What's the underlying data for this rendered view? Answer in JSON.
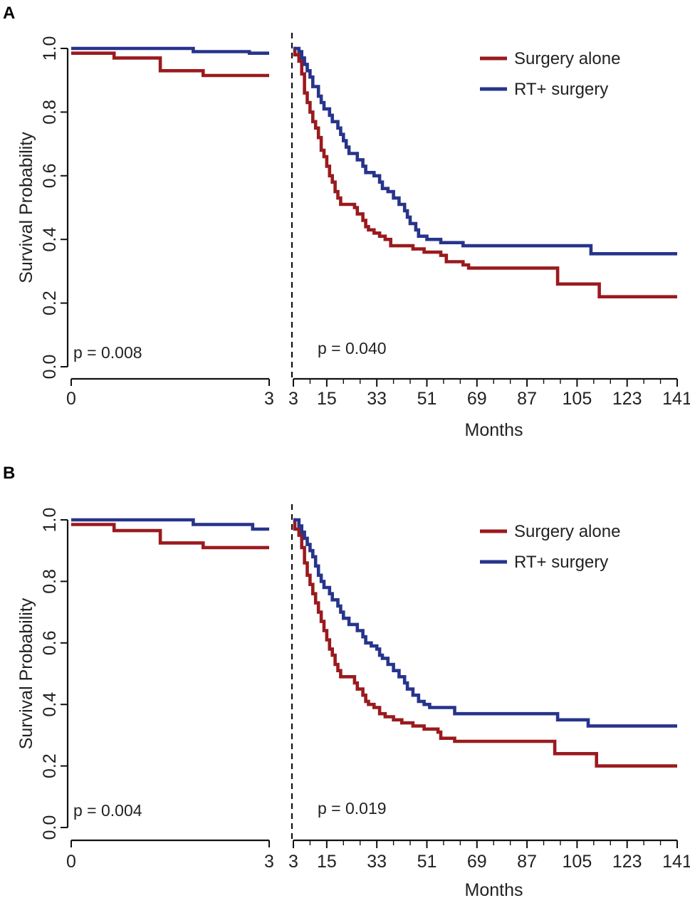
{
  "chart_data": [
    {
      "type": "line",
      "panel": "A",
      "ylabel": "Survival Probability",
      "xlabel": "Months",
      "y_ticks": [
        "0.0",
        "0.2",
        "0.4",
        "0.6",
        "0.8",
        "1.0"
      ],
      "ylim": [
        0,
        1
      ],
      "left_segment": {
        "xlim": [
          0,
          3
        ],
        "x_ticks": [
          "0",
          "3"
        ],
        "p_value": "p = 0.008"
      },
      "right_segment": {
        "xlim": [
          3,
          141
        ],
        "x_ticks": [
          "3",
          "15",
          "33",
          "51",
          "69",
          "87",
          "105",
          "123",
          "141"
        ],
        "p_value": "p = 0.040"
      },
      "legend": [
        "Surgery alone",
        "RT+ surgery"
      ],
      "colors": {
        "surgery_alone": "#9a1a1e",
        "rt_surgery": "#27348b"
      },
      "series": [
        {
          "name": "Surgery alone",
          "left": [
            [
              0,
              0.985
            ],
            [
              0.65,
              0.985
            ],
            [
              0.65,
              0.97
            ],
            [
              1.35,
              0.97
            ],
            [
              1.35,
              0.93
            ],
            [
              2.0,
              0.93
            ],
            [
              2.0,
              0.915
            ],
            [
              3.0,
              0.915
            ]
          ],
          "right": [
            [
              3,
              1.0
            ],
            [
              3.5,
              0.98
            ],
            [
              5,
              0.96
            ],
            [
              6,
              0.92
            ],
            [
              7,
              0.86
            ],
            [
              8,
              0.83
            ],
            [
              9,
              0.8
            ],
            [
              10,
              0.77
            ],
            [
              11,
              0.75
            ],
            [
              12,
              0.72
            ],
            [
              13,
              0.68
            ],
            [
              14,
              0.66
            ],
            [
              15,
              0.63
            ],
            [
              16,
              0.6
            ],
            [
              17,
              0.58
            ],
            [
              18,
              0.55
            ],
            [
              19,
              0.53
            ],
            [
              20,
              0.51
            ],
            [
              24,
              0.51
            ],
            [
              25,
              0.5
            ],
            [
              26,
              0.48
            ],
            [
              28,
              0.46
            ],
            [
              29,
              0.44
            ],
            [
              30,
              0.43
            ],
            [
              32,
              0.42
            ],
            [
              34,
              0.41
            ],
            [
              36,
              0.4
            ],
            [
              38,
              0.38
            ],
            [
              46,
              0.37
            ],
            [
              50,
              0.36
            ],
            [
              56,
              0.35
            ],
            [
              58,
              0.33
            ],
            [
              64,
              0.32
            ],
            [
              66,
              0.31
            ],
            [
              96,
              0.31
            ],
            [
              98,
              0.26
            ],
            [
              111,
              0.26
            ],
            [
              113,
              0.22
            ],
            [
              141,
              0.22
            ]
          ]
        },
        {
          "name": "RT+ surgery",
          "left": [
            [
              0,
              1.0
            ],
            [
              1.85,
              1.0
            ],
            [
              1.85,
              0.99
            ],
            [
              2.7,
              0.99
            ],
            [
              2.7,
              0.985
            ],
            [
              3.0,
              0.985
            ]
          ],
          "right": [
            [
              3,
              1.0
            ],
            [
              5,
              0.99
            ],
            [
              6,
              0.97
            ],
            [
              7,
              0.95
            ],
            [
              8,
              0.93
            ],
            [
              9,
              0.91
            ],
            [
              10,
              0.88
            ],
            [
              12,
              0.85
            ],
            [
              13,
              0.83
            ],
            [
              14,
              0.81
            ],
            [
              16,
              0.79
            ],
            [
              17,
              0.77
            ],
            [
              19,
              0.75
            ],
            [
              20,
              0.73
            ],
            [
              21,
              0.71
            ],
            [
              22,
              0.69
            ],
            [
              23,
              0.67
            ],
            [
              26,
              0.65
            ],
            [
              28,
              0.63
            ],
            [
              29,
              0.61
            ],
            [
              32,
              0.6
            ],
            [
              34,
              0.58
            ],
            [
              35,
              0.56
            ],
            [
              37,
              0.55
            ],
            [
              39,
              0.53
            ],
            [
              41,
              0.51
            ],
            [
              43,
              0.49
            ],
            [
              44,
              0.47
            ],
            [
              45,
              0.45
            ],
            [
              47,
              0.43
            ],
            [
              48,
              0.41
            ],
            [
              51,
              0.4
            ],
            [
              56,
              0.39
            ],
            [
              64,
              0.38
            ],
            [
              108,
              0.38
            ],
            [
              110,
              0.355
            ],
            [
              141,
              0.355
            ]
          ]
        }
      ]
    },
    {
      "type": "line",
      "panel": "B",
      "ylabel": "Survival Probability",
      "xlabel": "Months",
      "y_ticks": [
        "0.0",
        "0.2",
        "0.4",
        "0.6",
        "0.8",
        "1.0"
      ],
      "ylim": [
        0,
        1
      ],
      "left_segment": {
        "xlim": [
          0,
          3
        ],
        "x_ticks": [
          "0",
          "3"
        ],
        "p_value": "p = 0.004"
      },
      "right_segment": {
        "xlim": [
          3,
          141
        ],
        "x_ticks": [
          "3",
          "15",
          "33",
          "51",
          "69",
          "87",
          "105",
          "123",
          "141"
        ],
        "p_value": "p = 0.019"
      },
      "legend": [
        "Surgery alone",
        "RT+ surgery"
      ],
      "colors": {
        "surgery_alone": "#9a1a1e",
        "rt_surgery": "#27348b"
      },
      "series": [
        {
          "name": "Surgery alone",
          "left": [
            [
              0,
              0.985
            ],
            [
              0.65,
              0.985
            ],
            [
              0.65,
              0.965
            ],
            [
              1.35,
              0.965
            ],
            [
              1.35,
              0.925
            ],
            [
              2.0,
              0.925
            ],
            [
              2.0,
              0.91
            ],
            [
              3.0,
              0.91
            ]
          ],
          "right": [
            [
              3,
              1.0
            ],
            [
              3.5,
              0.97
            ],
            [
              5,
              0.95
            ],
            [
              6,
              0.91
            ],
            [
              7,
              0.86
            ],
            [
              8,
              0.82
            ],
            [
              9,
              0.79
            ],
            [
              10,
              0.76
            ],
            [
              11,
              0.73
            ],
            [
              12,
              0.7
            ],
            [
              13,
              0.67
            ],
            [
              14,
              0.64
            ],
            [
              15,
              0.61
            ],
            [
              16,
              0.58
            ],
            [
              17,
              0.56
            ],
            [
              18,
              0.53
            ],
            [
              19,
              0.51
            ],
            [
              20,
              0.49
            ],
            [
              24,
              0.49
            ],
            [
              25,
              0.47
            ],
            [
              26,
              0.45
            ],
            [
              28,
              0.43
            ],
            [
              29,
              0.41
            ],
            [
              30,
              0.4
            ],
            [
              32,
              0.39
            ],
            [
              34,
              0.37
            ],
            [
              36,
              0.36
            ],
            [
              39,
              0.35
            ],
            [
              42,
              0.34
            ],
            [
              46,
              0.33
            ],
            [
              50,
              0.32
            ],
            [
              55,
              0.31
            ],
            [
              56,
              0.29
            ],
            [
              61,
              0.28
            ],
            [
              96,
              0.28
            ],
            [
              97,
              0.24
            ],
            [
              111,
              0.24
            ],
            [
              112,
              0.2
            ],
            [
              141,
              0.2
            ]
          ]
        },
        {
          "name": "RT+ surgery",
          "left": [
            [
              0,
              1.0
            ],
            [
              1.85,
              1.0
            ],
            [
              1.85,
              0.985
            ],
            [
              2.75,
              0.985
            ],
            [
              2.75,
              0.97
            ],
            [
              3.0,
              0.97
            ]
          ],
          "right": [
            [
              3,
              1.0
            ],
            [
              5,
              0.98
            ],
            [
              6,
              0.96
            ],
            [
              7,
              0.94
            ],
            [
              8,
              0.92
            ],
            [
              9,
              0.9
            ],
            [
              10,
              0.88
            ],
            [
              11,
              0.85
            ],
            [
              12,
              0.82
            ],
            [
              13,
              0.8
            ],
            [
              14,
              0.78
            ],
            [
              16,
              0.76
            ],
            [
              17,
              0.74
            ],
            [
              19,
              0.72
            ],
            [
              20,
              0.7
            ],
            [
              21,
              0.68
            ],
            [
              23,
              0.66
            ],
            [
              26,
              0.64
            ],
            [
              28,
              0.62
            ],
            [
              29,
              0.6
            ],
            [
              31,
              0.59
            ],
            [
              33,
              0.58
            ],
            [
              34,
              0.56
            ],
            [
              35,
              0.55
            ],
            [
              37,
              0.53
            ],
            [
              39,
              0.51
            ],
            [
              41,
              0.49
            ],
            [
              43,
              0.47
            ],
            [
              44,
              0.45
            ],
            [
              46,
              0.43
            ],
            [
              48,
              0.41
            ],
            [
              50,
              0.4
            ],
            [
              52,
              0.39
            ],
            [
              61,
              0.37
            ],
            [
              97,
              0.37
            ],
            [
              98,
              0.35
            ],
            [
              108,
              0.35
            ],
            [
              109,
              0.33
            ],
            [
              141,
              0.33
            ]
          ]
        }
      ]
    }
  ]
}
